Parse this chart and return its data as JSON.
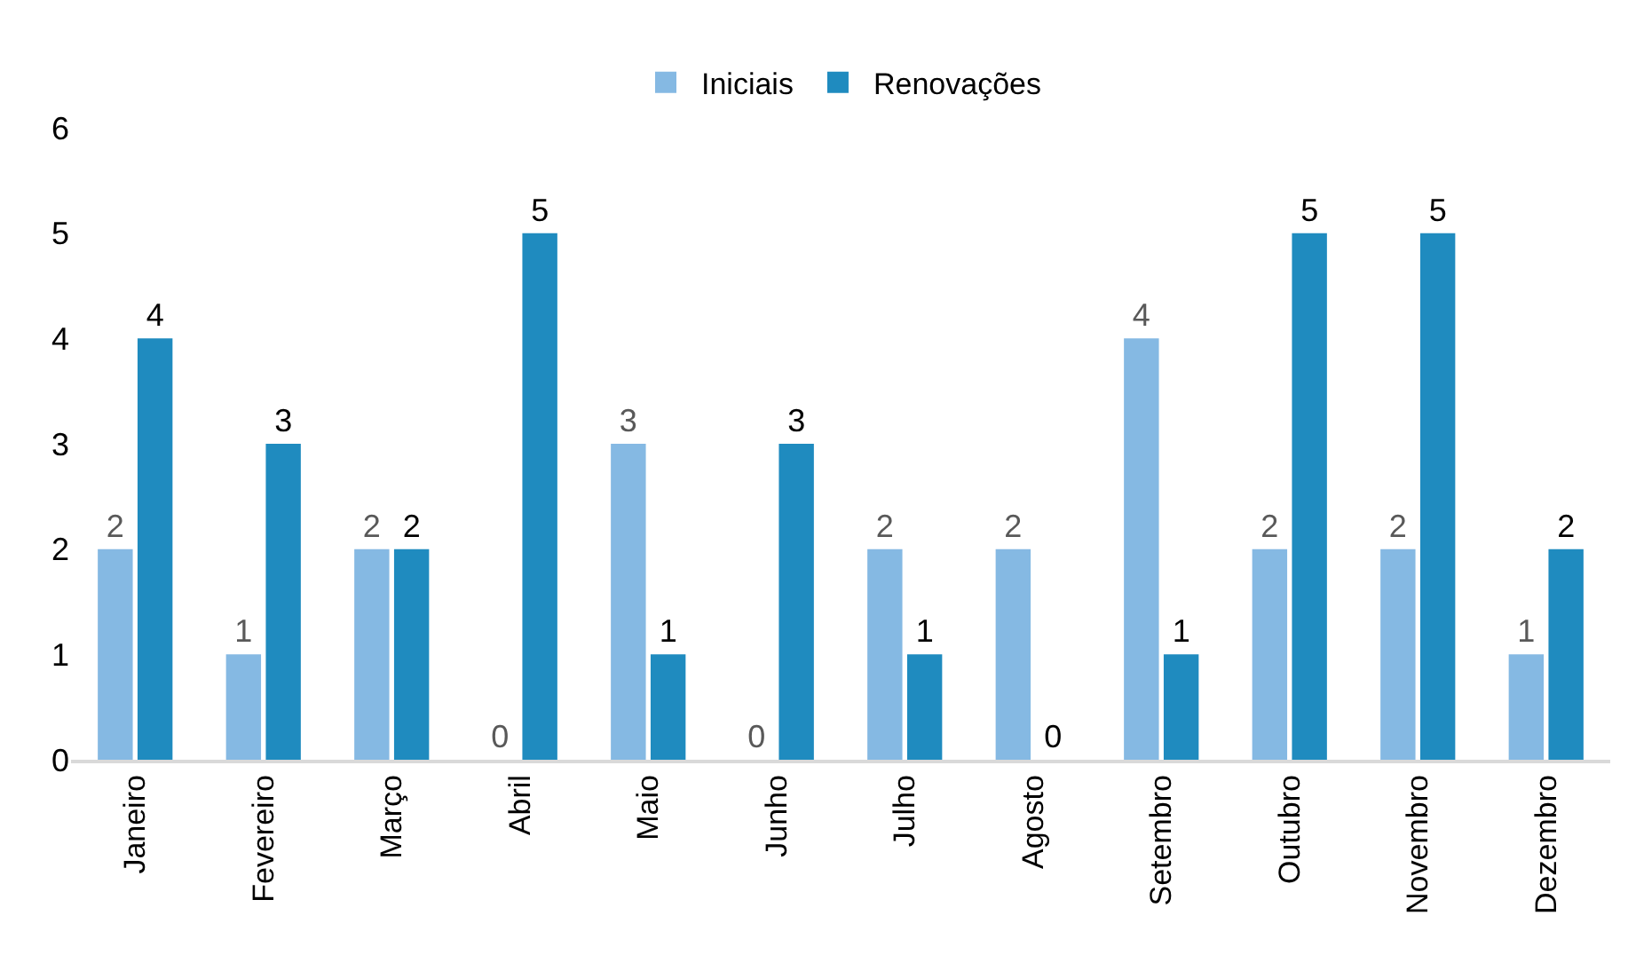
{
  "chart_data": {
    "type": "bar",
    "categories": [
      "Janeiro",
      "Fevereiro",
      "Março",
      "Abril",
      "Maio",
      "Junho",
      "Julho",
      "Agosto",
      "Setembro",
      "Outubro",
      "Novembro",
      "Dezembro"
    ],
    "series": [
      {
        "name": "Iniciais",
        "color": "#85b9e3",
        "values": [
          2,
          1,
          2,
          0,
          3,
          0,
          2,
          2,
          4,
          2,
          2,
          1
        ]
      },
      {
        "name": "Renovações",
        "color": "#1f8bbf",
        "values": [
          4,
          3,
          2,
          5,
          1,
          3,
          1,
          0,
          1,
          5,
          5,
          2
        ]
      }
    ],
    "ylim": [
      0,
      6
    ],
    "yticks": [
      0,
      1,
      2,
      3,
      4,
      5,
      6
    ],
    "data_labels": true,
    "grid": false,
    "legend": "top"
  }
}
